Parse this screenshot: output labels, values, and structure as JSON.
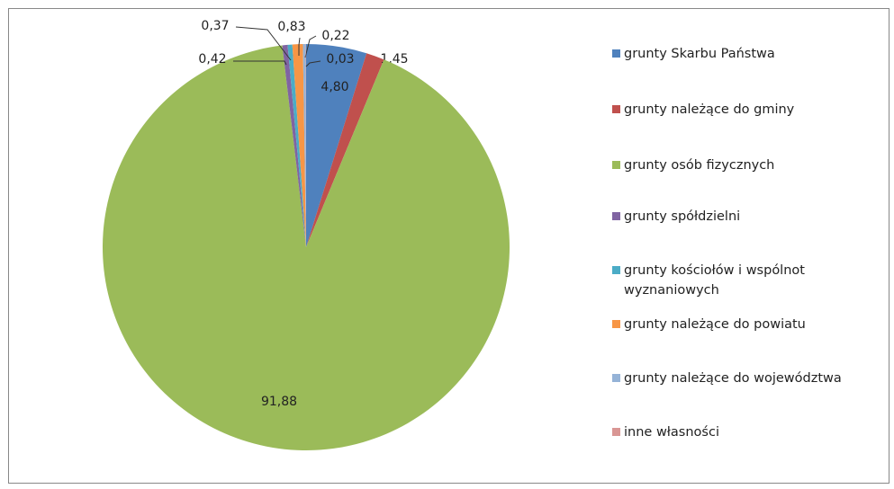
{
  "chart_data": {
    "type": "pie",
    "categories": [
      "grunty Skarbu Państwa",
      "grunty należące do gminy",
      "grunty osób fizycznych",
      "grunty spółdzielni",
      "grunty kościołów i wspólnot wyznaniowych",
      "grunty należące do powiatu",
      "grunty należące do województwa",
      "inne własności"
    ],
    "values": [
      4.8,
      1.45,
      91.88,
      0.42,
      0.37,
      0.83,
      0.22,
      0.03
    ],
    "value_labels": [
      "4,80",
      "1,45",
      "91,88",
      "0,42",
      "0,37",
      "0,83",
      "0,22",
      "0,03"
    ],
    "colors": [
      "#4f81bd",
      "#c0504d",
      "#9bbb59",
      "#8064a2",
      "#4bacc6",
      "#f79646",
      "#95b3d7",
      "#d99694"
    ],
    "legend": "right"
  }
}
